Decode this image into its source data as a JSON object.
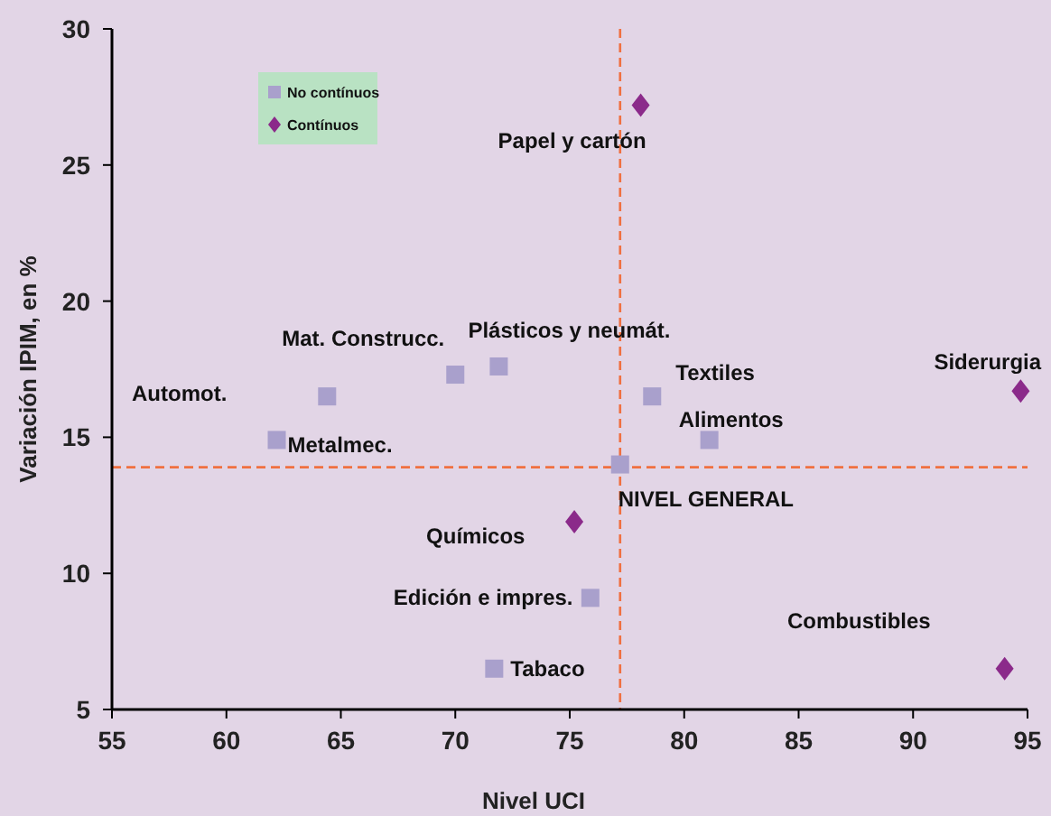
{
  "chart_data": {
    "type": "scatter",
    "xlabel": "Nivel UCI",
    "ylabel": "Variación IPIM, en %",
    "xlim": [
      55,
      95
    ],
    "xticks": [
      55,
      60,
      65,
      70,
      75,
      80,
      85,
      90,
      95
    ],
    "ylim": [
      5,
      30
    ],
    "yticks": [
      5,
      10,
      15,
      20,
      25,
      30
    ],
    "grid": false,
    "legend": "top left",
    "series": [
      {
        "name": "No contínuos",
        "color": "#a9a0cc",
        "marker": "square",
        "x": [
          62.2,
          64.4,
          70.0,
          71.9,
          78.6,
          81.1,
          77.2,
          75.9,
          71.7
        ],
        "values": [
          14.9,
          16.5,
          17.3,
          17.6,
          16.5,
          14.9,
          14.0,
          9.1,
          6.5
        ]
      },
      {
        "name": "Contínuos",
        "color": "#8b2a8a",
        "marker": "diamond",
        "x": [
          78.1,
          75.2,
          94.7,
          94.0
        ],
        "values": [
          27.2,
          11.9,
          16.7,
          6.5
        ]
      }
    ],
    "ref_lines": [
      {
        "axis": "y",
        "value": 13.9,
        "color": "#f07040",
        "line_style": "dashed"
      },
      {
        "axis": "x",
        "value": 77.2,
        "color": "#f07040",
        "line_style": "dashed"
      }
    ],
    "annotations": [
      {
        "text": "Papel y cartón",
        "x": 78.1,
        "y": 27.2
      },
      {
        "text": "Mat. Construcc.",
        "x": 70.0,
        "y": 17.3
      },
      {
        "text": "Plásticos y neumát.",
        "x": 71.9,
        "y": 17.6
      },
      "Automot.",
      {
        "text": "Metalmec.",
        "x": 62.2,
        "y": 14.9
      },
      {
        "text": "Textiles",
        "x": 78.6,
        "y": 16.5
      },
      {
        "text": "Alimentos",
        "x": 81.1,
        "y": 14.9
      },
      {
        "text": "NIVEL GENERAL",
        "x": 77.2,
        "y": 14.0
      },
      {
        "text": "Químicos",
        "x": 75.2,
        "y": 11.9
      },
      {
        "text": "Edición e impres.",
        "x": 75.9,
        "y": 9.1
      },
      {
        "text": "Tabaco",
        "x": 71.7,
        "y": 6.5
      },
      "Combustibles",
      {
        "text": "Siderurgia",
        "x": 94.7,
        "y": 16.7
      }
    ]
  }
}
